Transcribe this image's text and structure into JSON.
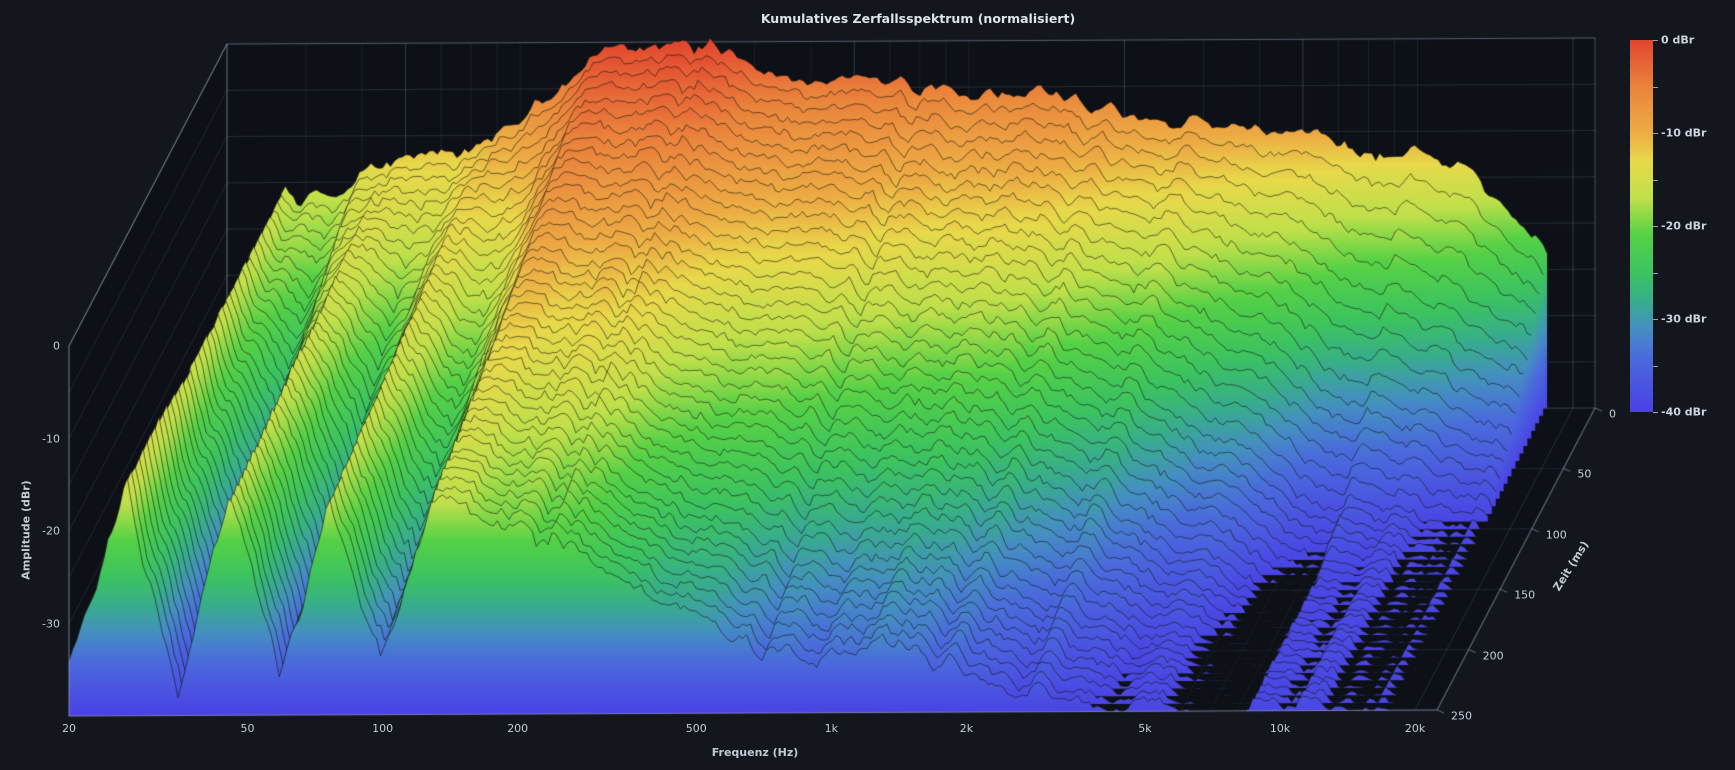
{
  "title": "Kumulatives Zerfallsspektrum (normalisiert)",
  "axes": {
    "x": {
      "label": "Frequenz (Hz)",
      "scale": "log",
      "min_hz": 20,
      "max_hz": 22400,
      "ticks": [
        {
          "value": 20,
          "label": "20"
        },
        {
          "value": 50,
          "label": "50"
        },
        {
          "value": 100,
          "label": "100"
        },
        {
          "value": 200,
          "label": "200"
        },
        {
          "value": 500,
          "label": "500"
        },
        {
          "value": 1000,
          "label": "1k"
        },
        {
          "value": 2000,
          "label": "2k"
        },
        {
          "value": 5000,
          "label": "5k"
        },
        {
          "value": 10000,
          "label": "10k"
        },
        {
          "value": 20000,
          "label": "20k"
        }
      ]
    },
    "y": {
      "label": "Amplitude (dBr)",
      "min_dbr": -40,
      "max_dbr": 0,
      "ticks": [
        {
          "value": 0,
          "label": "0"
        },
        {
          "value": -10,
          "label": "-10"
        },
        {
          "value": -20,
          "label": "-20"
        },
        {
          "value": -30,
          "label": "-30"
        }
      ]
    },
    "z": {
      "label": "Zeit (ms)",
      "min_ms": 0,
      "max_ms": 250,
      "ticks": [
        {
          "value": 0,
          "label": "0"
        },
        {
          "value": 50,
          "label": "50"
        },
        {
          "value": 100,
          "label": "100"
        },
        {
          "value": 150,
          "label": "150"
        },
        {
          "value": 200,
          "label": "200"
        },
        {
          "value": 250,
          "label": "250"
        }
      ]
    }
  },
  "colorbar": {
    "labels": [
      {
        "amp": 0,
        "label": "0 dBr"
      },
      {
        "amp": -10,
        "label": "-10 dBr"
      },
      {
        "amp": -20,
        "label": "-20 dBr"
      },
      {
        "amp": -30,
        "label": "-30 dBr"
      },
      {
        "amp": -40,
        "label": "-40 dBr"
      }
    ],
    "minor_tick_step_db": 5
  },
  "colors": {
    "page_bg": "#13161d",
    "plot_bg": "#0d1017",
    "grid": "#aebad2",
    "text": "#c6ccd8",
    "outline": "rgba(18,22,14,0.6)",
    "colormap": [
      {
        "amp": 0,
        "color": "#e2452f"
      },
      {
        "amp": -5,
        "color": "#ea823c"
      },
      {
        "amp": -10,
        "color": "#edac44"
      },
      {
        "amp": -13,
        "color": "#e8d94a"
      },
      {
        "amp": -17,
        "color": "#bfe04a"
      },
      {
        "amp": -21,
        "color": "#55d146"
      },
      {
        "amp": -25,
        "color": "#3cc360"
      },
      {
        "amp": -28,
        "color": "#38ae8b"
      },
      {
        "amp": -31,
        "color": "#458fc2"
      },
      {
        "amp": -34,
        "color": "#4a6cdc"
      },
      {
        "amp": -40,
        "color": "#4b40e6"
      }
    ]
  },
  "chart_data": {
    "type": "area",
    "variant": "waterfall_3d_csd",
    "title": "Kumulatives Zerfallsspektrum (normalisiert)",
    "xlabel": "Frequenz (Hz)",
    "ylabel": "Amplitude (dBr)",
    "zlabel": "Zeit (ms)",
    "x_range_hz": [
      20,
      22400
    ],
    "amp_range_dbr": [
      -40,
      0
    ],
    "time_range_ms": [
      0,
      250
    ],
    "data_freq_range_hz": [
      20,
      17500
    ],
    "amp_floor_dbr": -40,
    "slices": {
      "count": 41,
      "start_ms": 0,
      "step_ms": 6.25
    },
    "freq_nodes_hz": [
      20,
      27,
      35,
      46,
      59,
      76,
      99,
      128,
      165,
      230,
      320,
      450,
      640,
      900,
      1300,
      1900,
      2700,
      3900,
      5600,
      8000,
      12000,
      17500
    ],
    "time_nodes_ms": [
      0,
      30,
      60,
      100,
      150,
      200,
      250
    ],
    "amplitude_grid_dbr": [
      [
        -30,
        -16,
        -15,
        -13,
        -12,
        -10,
        -6,
        -1,
        0,
        -1,
        -3,
        -4,
        -4,
        -5,
        -6,
        -7,
        -9,
        -10,
        -11,
        -12,
        -15,
        -23
      ],
      [
        -31,
        -16,
        -18,
        -14,
        -15,
        -11,
        -10,
        -4,
        -3,
        -4,
        -6,
        -7,
        -8,
        -9,
        -10,
        -11,
        -13,
        -16,
        -19,
        -22,
        -26,
        -30
      ],
      [
        -32,
        -16,
        -22,
        -14,
        -19,
        -12,
        -14,
        -6,
        -6,
        -8,
        -9,
        -10,
        -11,
        -12,
        -14,
        -15,
        -18,
        -22,
        -26,
        -30,
        -33,
        -36
      ],
      [
        -33,
        -16,
        -26,
        -15,
        -24,
        -13,
        -19,
        -9,
        -10,
        -12,
        -13,
        -15,
        -16,
        -17,
        -19,
        -20,
        -24,
        -29,
        -33,
        -37,
        -39,
        -40
      ],
      [
        -34,
        -16,
        -30,
        -15,
        -29,
        -14,
        -24,
        -12,
        -13,
        -15,
        -18,
        -20,
        -22,
        -23,
        -25,
        -26,
        -30,
        -35,
        -38,
        -40,
        -40,
        -40
      ],
      [
        -35,
        -15,
        -33,
        -16,
        -33,
        -15,
        -29,
        -14,
        -16,
        -19,
        -22,
        -25,
        -28,
        -29,
        -30,
        -31,
        -35,
        -38,
        -40,
        -40,
        -40,
        -40
      ],
      [
        -36,
        -15,
        -36,
        -16,
        -36,
        -16,
        -33,
        -16,
        -18,
        -22,
        -24,
        -28,
        -32,
        -33,
        -33,
        -34,
        -38,
        -40,
        -40,
        -40,
        -40,
        -40
      ]
    ]
  }
}
